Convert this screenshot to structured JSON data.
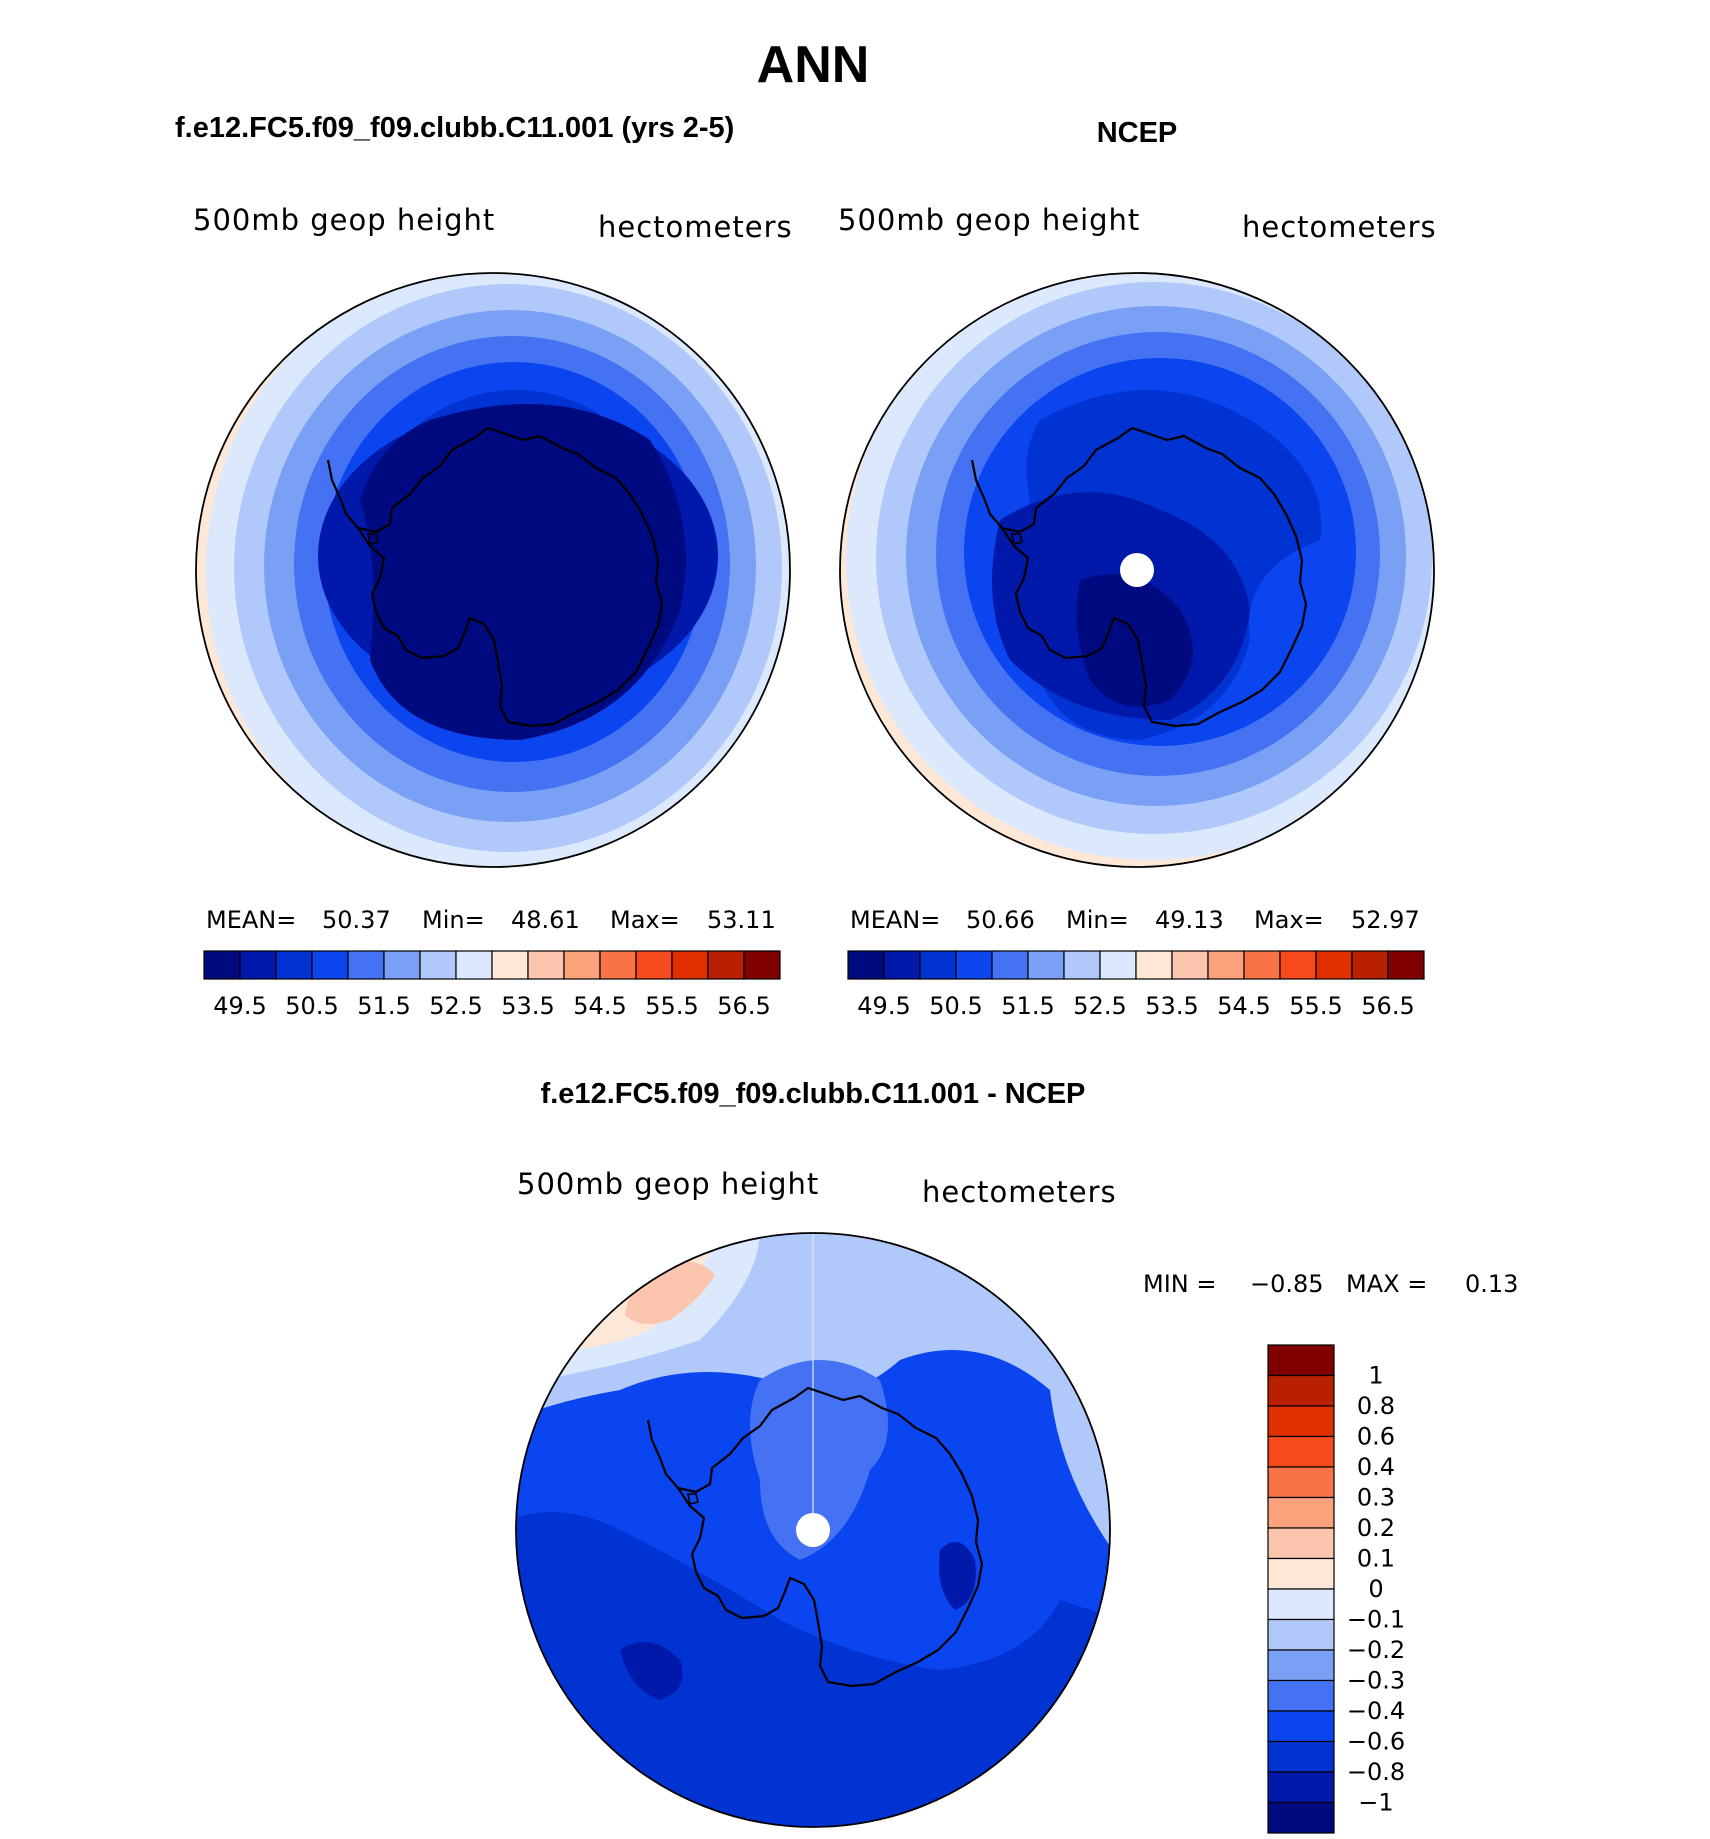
{
  "page_title": "ANN",
  "palette": [
    "#000a80",
    "#0019aa",
    "#0033d2",
    "#0a45f0",
    "#4472f2",
    "#7aa0f6",
    "#b0c8fa",
    "#dce9fc",
    "#fde8d8",
    "#fcc5ae",
    "#fba17c",
    "#f87446",
    "#f74a1c",
    "#e03000",
    "#b82000",
    "#800000"
  ],
  "mean_levels": [
    "49.5",
    "50.5",
    "51.5",
    "52.5",
    "53.5",
    "54.5",
    "55.5",
    "56.5"
  ],
  "diff_levels": [
    "1",
    "0.8",
    "0.6",
    "0.4",
    "0.3",
    "0.2",
    "0.1",
    "0",
    "−0.1",
    "−0.2",
    "−0.3",
    "−0.4",
    "−0.6",
    "−0.8",
    "−1"
  ],
  "panels": {
    "model": {
      "title": "f.e12.FC5.f09_f09.clubb.C11.001 (yrs 2-5)",
      "variable": "500mb geop height",
      "units": "hectometers",
      "stats": {
        "mean_label": "MEAN=",
        "mean": "50.37",
        "min_label": "Min=",
        "min": "48.61",
        "max_label": "Max=",
        "max": "53.11"
      }
    },
    "obs": {
      "title": "NCEP",
      "variable": "500mb geop height",
      "units": "hectometers",
      "stats": {
        "mean_label": "MEAN=",
        "mean": "50.66",
        "min_label": "Min=",
        "min": "49.13",
        "max_label": "Max=",
        "max": "52.97"
      }
    },
    "diff": {
      "title": "f.e12.FC5.f09_f09.clubb.C11.001 - NCEP",
      "variable": "500mb geop height",
      "units": "hectometers",
      "stats": {
        "min_label": "MIN =",
        "min": "−0.85",
        "max_label": "MAX =",
        "max": "0.13"
      }
    }
  }
}
